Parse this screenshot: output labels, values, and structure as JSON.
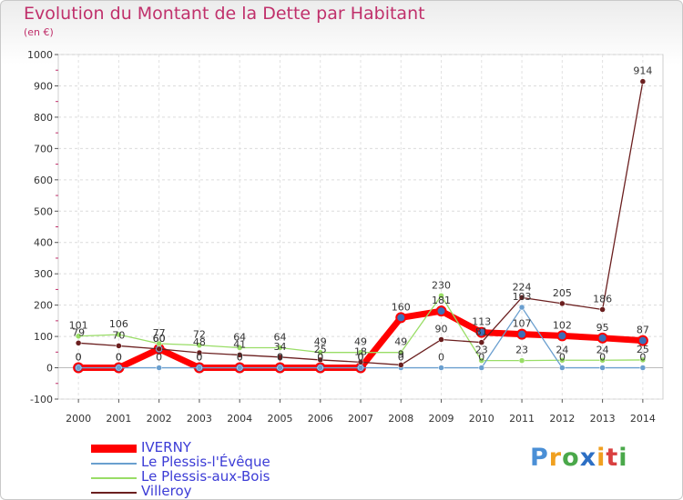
{
  "chart_data": {
    "type": "line",
    "title": "Evolution du Montant de la Dette par Habitant",
    "subtitle": "(en €)",
    "xlabel": "",
    "ylabel": "",
    "x": [
      "2000",
      "2001",
      "2002",
      "2003",
      "2004",
      "2005",
      "2006",
      "2007",
      "2008",
      "2009",
      "2010",
      "2011",
      "2012",
      "2013",
      "2014"
    ],
    "ylim": [
      -100,
      1000
    ],
    "yticks": [
      "-100",
      "0",
      "100",
      "200",
      "300",
      "400",
      "500",
      "600",
      "700",
      "800",
      "900",
      "1000"
    ],
    "grid": true,
    "legend_position": "bottom-left",
    "series": [
      {
        "name": "IVERNY",
        "color": "#ff0000",
        "values": [
          0,
          0,
          60,
          0,
          0,
          0,
          0,
          0,
          160,
          181,
          113,
          107,
          102,
          95,
          87
        ],
        "labels": [
          "0",
          "0",
          "60",
          "0",
          "0",
          "0",
          "0",
          "0",
          "160",
          "181",
          "113",
          "107",
          "102",
          "95",
          "87"
        ]
      },
      {
        "name": "Le Plessis-l'Évêque",
        "color": "#6a9fcf",
        "values": [
          0,
          0,
          0,
          0,
          0,
          0,
          0,
          0,
          0,
          0,
          0,
          193,
          0,
          0,
          0
        ],
        "labels": [
          "0",
          "0",
          "0",
          "0",
          "0",
          "0",
          "0",
          "0",
          "0",
          "0",
          "0",
          "193",
          "0",
          "0",
          "0"
        ]
      },
      {
        "name": "Le Plessis-aux-Bois",
        "color": "#99dd66",
        "values": [
          101,
          106,
          77,
          72,
          64,
          64,
          49,
          49,
          49,
          230,
          23,
          23,
          24,
          24,
          25
        ],
        "labels": [
          "101",
          "106",
          "77",
          "72",
          "64",
          "64",
          "49",
          "49",
          "49",
          "230",
          "23",
          "23",
          "24",
          "24",
          "25"
        ]
      },
      {
        "name": "Villeroy",
        "color": "#6b1f1f",
        "values": [
          79,
          70,
          60,
          48,
          41,
          34,
          25,
          18,
          9,
          90,
          81,
          224,
          205,
          186,
          914
        ],
        "labels": [
          "79",
          "70",
          "60",
          "48",
          "41",
          "34",
          "25",
          "18",
          "9",
          "90",
          "81",
          "224",
          "205",
          "186",
          "914"
        ]
      }
    ]
  },
  "legend": {
    "items": [
      {
        "label": "IVERNY"
      },
      {
        "label": "Le Plessis-l'Évêque"
      },
      {
        "label": "Le Plessis-aux-Bois"
      },
      {
        "label": "Villeroy"
      }
    ]
  },
  "brand": {
    "letters": [
      "P",
      "r",
      "o",
      "x",
      "i",
      "t",
      "i"
    ],
    "colors": [
      "#4a8fd6",
      "#f0a020",
      "#4aa84a",
      "#2d6fc4",
      "#f0a020",
      "#d94040",
      "#4aa84a"
    ]
  }
}
